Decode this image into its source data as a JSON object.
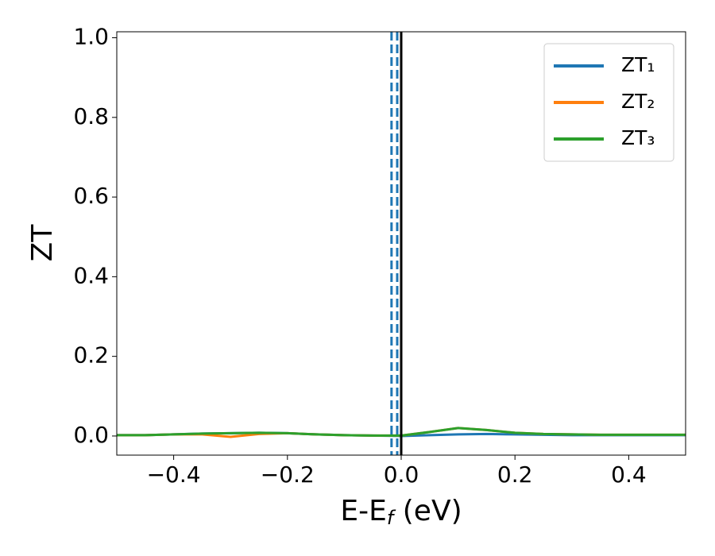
{
  "chart_data": {
    "type": "line",
    "ylabel": "ZT",
    "xlabel": [
      "E-E",
      "f",
      " (eV)"
    ],
    "x": [
      -0.5,
      -0.45,
      -0.4,
      -0.35,
      -0.3,
      -0.25,
      -0.2,
      -0.15,
      -0.1,
      -0.05,
      0,
      0.05,
      0.1,
      0.15,
      0.2,
      0.25,
      0.3,
      0.35,
      0.4,
      0.45,
      0.5
    ],
    "series": [
      {
        "name": "ZT₁",
        "color": "#1f77b4",
        "values": [
          0.002,
          0.002,
          0.004,
          0.006,
          0.007,
          0.008,
          0.007,
          0.004,
          0.002,
          0.001,
          0.0,
          0.002,
          0.004,
          0.005,
          0.004,
          0.003,
          0.002,
          0.002,
          0.002,
          0.002,
          0.002
        ]
      },
      {
        "name": "ZT₂",
        "color": "#ff7f0e",
        "values": [
          0.002,
          0.002,
          0.004,
          0.004,
          -0.002,
          0.005,
          0.007,
          0.004,
          0.002,
          0.001,
          0.001,
          0.01,
          0.02,
          0.015,
          0.008,
          0.005,
          0.004,
          0.003,
          0.003,
          0.003,
          0.003
        ]
      },
      {
        "name": "ZT₃",
        "color": "#2ca02c",
        "values": [
          0.002,
          0.002,
          0.004,
          0.006,
          0.007,
          0.008,
          0.007,
          0.004,
          0.002,
          0.001,
          0.001,
          0.01,
          0.02,
          0.015,
          0.008,
          0.005,
          0.004,
          0.003,
          0.003,
          0.003,
          0.003
        ]
      }
    ],
    "vlines": [
      {
        "x": -0.017,
        "color": "#1f77b4",
        "style": "dashed"
      },
      {
        "x": -0.007,
        "color": "#1f77b4",
        "style": "dashed"
      },
      {
        "x": 0,
        "color": "#000000",
        "style": "solid"
      }
    ],
    "xlim": [
      -0.5,
      0.5
    ],
    "ylim": [
      -0.048,
      1.015
    ],
    "xticks": [
      {
        "value": -0.4,
        "label": "−0.4"
      },
      {
        "value": -0.2,
        "label": "−0.2"
      },
      {
        "value": 0,
        "label": "0.0"
      },
      0.2,
      0.4
    ],
    "yticks": [
      {
        "value": 0,
        "label": "0.0"
      },
      0.2,
      0.4,
      0.6,
      0.8,
      {
        "value": 1,
        "label": "1.0"
      }
    ],
    "grid": false,
    "legend": "upper right"
  }
}
